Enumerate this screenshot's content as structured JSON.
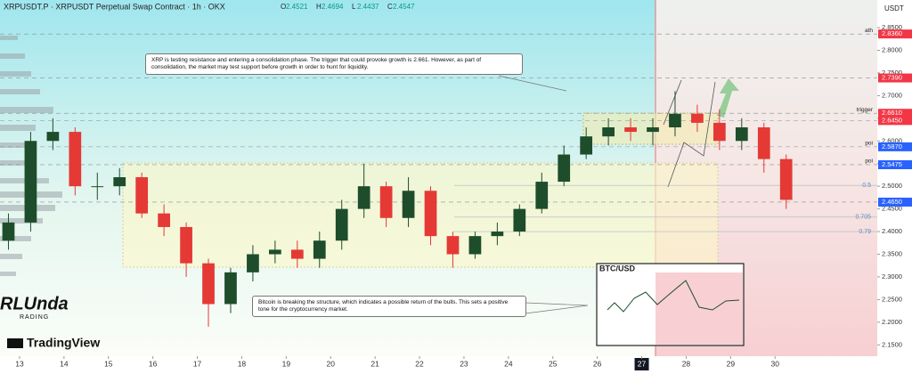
{
  "chart_data": {
    "type": "candlestick",
    "title": "XRPUSDT.P · XRPUSDT Perpetual Swap Contract · 1h · OKX",
    "header_ohlc": [
      {
        "label": "O",
        "value": 2.4521
      },
      {
        "label": "H",
        "value": 2.4694
      },
      {
        "label": "L",
        "value": 2.4437
      },
      {
        "label": "C",
        "value": 2.4547
      }
    ],
    "currency": "USDT",
    "x": [
      12.75,
      13.25,
      13.75,
      14.25,
      14.75,
      15.25,
      15.75,
      16.25,
      16.75,
      17.25,
      17.75,
      18.25,
      18.75,
      19.25,
      19.75,
      20.25,
      20.75,
      21.25,
      21.75,
      22.25,
      22.75,
      23.25,
      23.75,
      24.25,
      24.75,
      25.25,
      25.75,
      26.25,
      26.75,
      27.25,
      27.75,
      28.25,
      28.75,
      29.25,
      29.75,
      30.25
    ],
    "open": [
      2.38,
      2.42,
      2.6,
      2.62,
      2.5,
      2.5,
      2.52,
      2.44,
      2.41,
      2.33,
      2.24,
      2.31,
      2.35,
      2.36,
      2.34,
      2.38,
      2.45,
      2.5,
      2.43,
      2.49,
      2.39,
      2.35,
      2.39,
      2.4,
      2.45,
      2.51,
      2.57,
      2.61,
      2.63,
      2.62,
      2.63,
      2.66,
      2.64,
      2.6,
      2.63,
      2.56
    ],
    "close": [
      2.42,
      2.6,
      2.62,
      2.5,
      2.5,
      2.52,
      2.44,
      2.41,
      2.33,
      2.24,
      2.31,
      2.35,
      2.36,
      2.34,
      2.38,
      2.45,
      2.5,
      2.43,
      2.49,
      2.39,
      2.35,
      2.39,
      2.4,
      2.45,
      2.51,
      2.57,
      2.61,
      2.63,
      2.62,
      2.63,
      2.66,
      2.64,
      2.6,
      2.63,
      2.56,
      2.47
    ],
    "high": [
      2.44,
      2.62,
      2.65,
      2.63,
      2.53,
      2.54,
      2.53,
      2.46,
      2.42,
      2.34,
      2.32,
      2.37,
      2.38,
      2.38,
      2.4,
      2.47,
      2.55,
      2.51,
      2.52,
      2.5,
      2.4,
      2.4,
      2.42,
      2.46,
      2.53,
      2.59,
      2.63,
      2.65,
      2.65,
      2.65,
      2.71,
      2.68,
      2.67,
      2.65,
      2.64,
      2.57
    ],
    "low": [
      2.36,
      2.4,
      2.58,
      2.48,
      2.47,
      2.48,
      2.43,
      2.39,
      2.3,
      2.19,
      2.22,
      2.29,
      2.33,
      2.32,
      2.32,
      2.36,
      2.43,
      2.41,
      2.41,
      2.37,
      2.32,
      2.34,
      2.37,
      2.39,
      2.44,
      2.5,
      2.56,
      2.59,
      2.6,
      2.59,
      2.61,
      2.62,
      2.58,
      2.58,
      2.53,
      2.45
    ],
    "up_color": "#1e4d2b",
    "down_color": "#e53935",
    "xlim": [
      12.56,
      32.3
    ],
    "xticks": [
      13,
      14,
      15,
      16,
      17,
      18,
      19,
      20,
      21,
      22,
      23,
      24,
      25,
      26,
      27,
      28,
      29,
      30
    ],
    "highlight_xtick": 27,
    "ylim": [
      2.125,
      2.911
    ],
    "yticks": [
      {
        "value": 2.15,
        "label": "2.1500"
      },
      {
        "value": 2.2,
        "label": "2.2000"
      },
      {
        "value": 2.25,
        "label": "2.2500"
      },
      {
        "value": 2.3,
        "label": "2.3000"
      },
      {
        "value": 2.35,
        "label": "2.3500"
      },
      {
        "value": 2.4,
        "label": "2.4000"
      },
      {
        "value": 2.45,
        "label": "2.4500"
      },
      {
        "value": 2.5,
        "label": "2.5000"
      },
      {
        "value": 2.55,
        "label": "2.5500"
      },
      {
        "value": 2.6,
        "label": "2.6000"
      },
      {
        "value": 2.65,
        "label": "2.6500"
      },
      {
        "value": 2.7,
        "label": "2.7000"
      },
      {
        "value": 2.75,
        "label": "2.7500"
      },
      {
        "value": 2.8,
        "label": "2.8000"
      },
      {
        "value": 2.85,
        "label": "2.8500"
      }
    ],
    "levels": [
      {
        "value": 2.836,
        "label": "2.8360",
        "tag": "ath",
        "color": "#f23645"
      },
      {
        "value": 2.739,
        "label": "2.7390",
        "color": "#f23645"
      },
      {
        "value": 2.661,
        "label": "2.6610",
        "tag": "trigger",
        "color": "#f23645"
      },
      {
        "value": 2.645,
        "label": "2.6450",
        "color": "#f23645"
      },
      {
        "value": 2.587,
        "label": "2.5870",
        "tag": "poi",
        "color": "#2962ff"
      },
      {
        "value": 2.5475,
        "label": "2.5475",
        "tag": "poi",
        "color": "#2962ff"
      },
      {
        "value": 2.465,
        "label": "2.4650",
        "color": "#2962ff"
      }
    ],
    "fib_levels": [
      {
        "value": 2.502,
        "label": "0.5"
      },
      {
        "value": 2.432,
        "label": "0.705"
      },
      {
        "value": 2.4,
        "label": "0.79"
      }
    ],
    "annotations": [
      "XRP is testing resistance and entering a consolidation phase. The trigger that could provoke growth is 2.661. However, as part of consolidation, the market may test support before growth in order to hunt for liquidity.",
      "Bitcoin is breaking the structure, which indicates a possible return of the bulls. This sets a positive tone for the cryptocurrency market."
    ],
    "inset_title": "BTC/USD",
    "logo": "RLUnda",
    "logo_sub": "RADING",
    "brand": "TradingView"
  }
}
